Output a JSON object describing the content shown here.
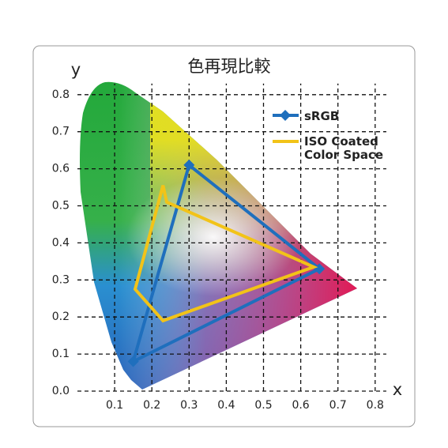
{
  "chart_data": {
    "type": "gamut",
    "title": "色再現比較",
    "xlabel": "x",
    "ylabel": "y",
    "xlim": [
      0,
      0.83
    ],
    "ylim": [
      0,
      0.83
    ],
    "xticks": [
      0.1,
      0.2,
      0.3,
      0.4,
      0.5,
      0.6,
      0.7,
      0.8
    ],
    "yticks": [
      {
        "value": 0,
        "label": "0.0"
      },
      0.1,
      0.2,
      0.3,
      0.4,
      0.5,
      0.6,
      0.7,
      0.8
    ],
    "grid": true,
    "series": [
      {
        "name": "sRGB",
        "color": "#1f6fbd",
        "marker": "diamond",
        "x": [
          0.65,
          0.3,
          0.15
        ],
        "values": [
          0.33,
          0.61,
          0.08
        ]
      },
      {
        "name": "ISO Coated Color Space",
        "color": "#f2c318",
        "x": [
          0.23,
          0.155,
          0.23,
          0.635,
          0.24
        ],
        "values": [
          0.555,
          0.275,
          0.19,
          0.335,
          0.51
        ]
      }
    ]
  }
}
